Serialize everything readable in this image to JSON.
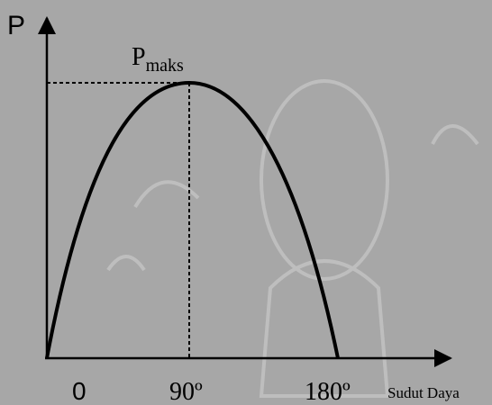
{
  "axes": {
    "y_label": "P",
    "x_label": "Sudut Daya"
  },
  "peak": {
    "label": "P",
    "subscript": "maks"
  },
  "x_ticks": [
    "0",
    "90º",
    "180º"
  ]
}
